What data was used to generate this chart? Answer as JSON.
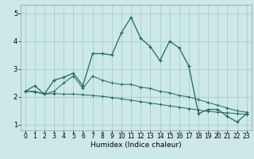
{
  "title": "",
  "xlabel": "Humidex (Indice chaleur)",
  "ylabel": "",
  "background_color": "#cce8e8",
  "grid_color": "#aacccc",
  "line_color": "#1a6b60",
  "xlim": [
    -0.5,
    23.5
  ],
  "ylim": [
    0.8,
    5.3
  ],
  "xticks": [
    0,
    1,
    2,
    3,
    4,
    5,
    6,
    7,
    8,
    9,
    10,
    11,
    12,
    13,
    14,
    15,
    16,
    17,
    18,
    19,
    20,
    21,
    22,
    23
  ],
  "yticks": [
    1,
    2,
    3,
    4,
    5
  ],
  "series1_x": [
    0,
    1,
    2,
    3,
    4,
    5,
    6,
    7,
    8,
    9,
    10,
    11,
    12,
    13,
    14,
    15,
    16,
    17,
    18,
    19,
    20,
    21,
    22,
    23
  ],
  "series1_y": [
    2.2,
    2.4,
    2.1,
    2.6,
    2.7,
    2.85,
    2.4,
    3.55,
    3.55,
    3.5,
    4.3,
    4.85,
    4.1,
    3.8,
    3.3,
    4.0,
    3.75,
    3.1,
    1.4,
    1.55,
    1.55,
    1.3,
    1.1,
    1.4
  ],
  "series2_x": [
    0,
    1,
    2,
    3,
    4,
    5,
    6,
    7,
    8,
    9,
    10,
    11,
    12,
    13,
    14,
    15,
    16,
    17,
    18,
    19,
    20,
    21,
    22,
    23
  ],
  "series2_y": [
    2.2,
    2.2,
    2.1,
    2.2,
    2.5,
    2.75,
    2.3,
    2.75,
    2.6,
    2.5,
    2.45,
    2.45,
    2.35,
    2.3,
    2.2,
    2.15,
    2.05,
    2.0,
    1.9,
    1.8,
    1.7,
    1.6,
    1.5,
    1.45
  ],
  "series3_x": [
    0,
    1,
    2,
    3,
    4,
    5,
    6,
    7,
    8,
    9,
    10,
    11,
    12,
    13,
    14,
    15,
    16,
    17,
    18,
    19,
    20,
    21,
    22,
    23
  ],
  "series3_y": [
    2.2,
    2.18,
    2.1,
    2.12,
    2.1,
    2.1,
    2.08,
    2.05,
    2.02,
    1.98,
    1.93,
    1.88,
    1.83,
    1.78,
    1.73,
    1.68,
    1.63,
    1.58,
    1.53,
    1.48,
    1.45,
    1.43,
    1.4,
    1.38
  ]
}
